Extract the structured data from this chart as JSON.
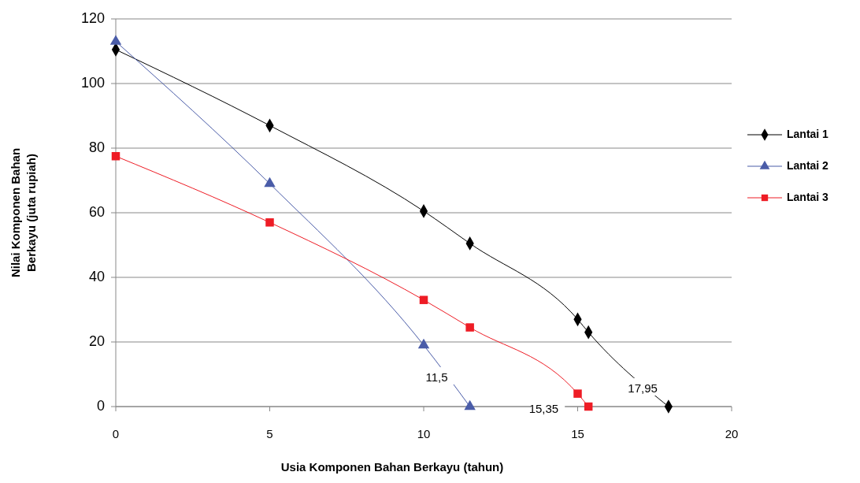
{
  "chart_data": {
    "type": "line",
    "xlabel": "Usia Komponen Bahan Berkayu (tahun)",
    "ylabel": "Nilai Komponen Bahan Berkayu (juta rupiah)",
    "xlim": [
      0,
      20
    ],
    "xticks": [
      0,
      5,
      10,
      15,
      20
    ],
    "ylim": [
      0,
      120
    ],
    "yticks": [
      0,
      20,
      40,
      60,
      80,
      100,
      120
    ],
    "grid": "y",
    "legend": "right",
    "series": [
      {
        "name": "Lantai 1",
        "color": "#000000",
        "marker": "diamond",
        "x": [
          0,
          5,
          10,
          11.5,
          15,
          15.35,
          17.95
        ],
        "values": [
          110.5,
          87,
          60.5,
          50.5,
          27,
          23,
          0
        ]
      },
      {
        "name": "Lantai 2",
        "color": "#4a5ca8",
        "marker": "triangle",
        "x": [
          0,
          5,
          10,
          11.5
        ],
        "values": [
          113,
          69,
          19,
          0
        ]
      },
      {
        "name": "Lantai 3",
        "color": "#ee1c25",
        "marker": "square",
        "x": [
          0,
          5,
          10,
          11.5,
          15,
          15.35
        ],
        "values": [
          77.5,
          57,
          33,
          24.5,
          4,
          0
        ]
      }
    ],
    "annotations": [
      {
        "text": "11,5",
        "x": 11.5,
        "y": 0
      },
      {
        "text": "15,35",
        "x": 15.35,
        "y": 0
      },
      {
        "text": "17,95",
        "x": 17.95,
        "y": 0
      }
    ]
  }
}
